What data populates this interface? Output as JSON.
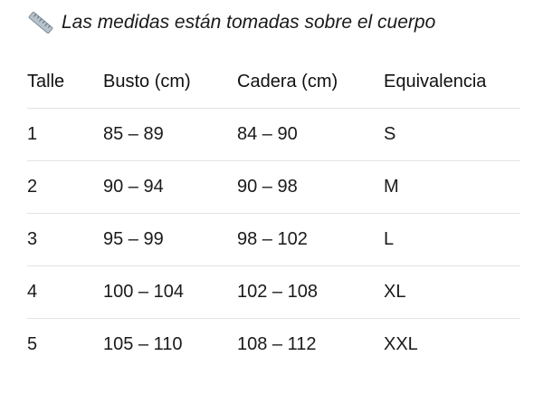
{
  "note": {
    "icon": "ruler-icon",
    "text": "Las medidas están tomadas sobre el cuerpo"
  },
  "table": {
    "headers": [
      "Talle",
      "Busto (cm)",
      "Cadera (cm)",
      "Equivalencia"
    ],
    "rows": [
      [
        "1",
        "85 – 89",
        "84 – 90",
        "S"
      ],
      [
        "2",
        "90 – 94",
        "90 – 98",
        "M"
      ],
      [
        "3",
        "95 – 99",
        "98 – 102",
        "L"
      ],
      [
        "4",
        "100 – 104",
        "102 – 108",
        "XL"
      ],
      [
        "5",
        "105 – 110",
        "108 – 112",
        "XXL"
      ]
    ]
  }
}
